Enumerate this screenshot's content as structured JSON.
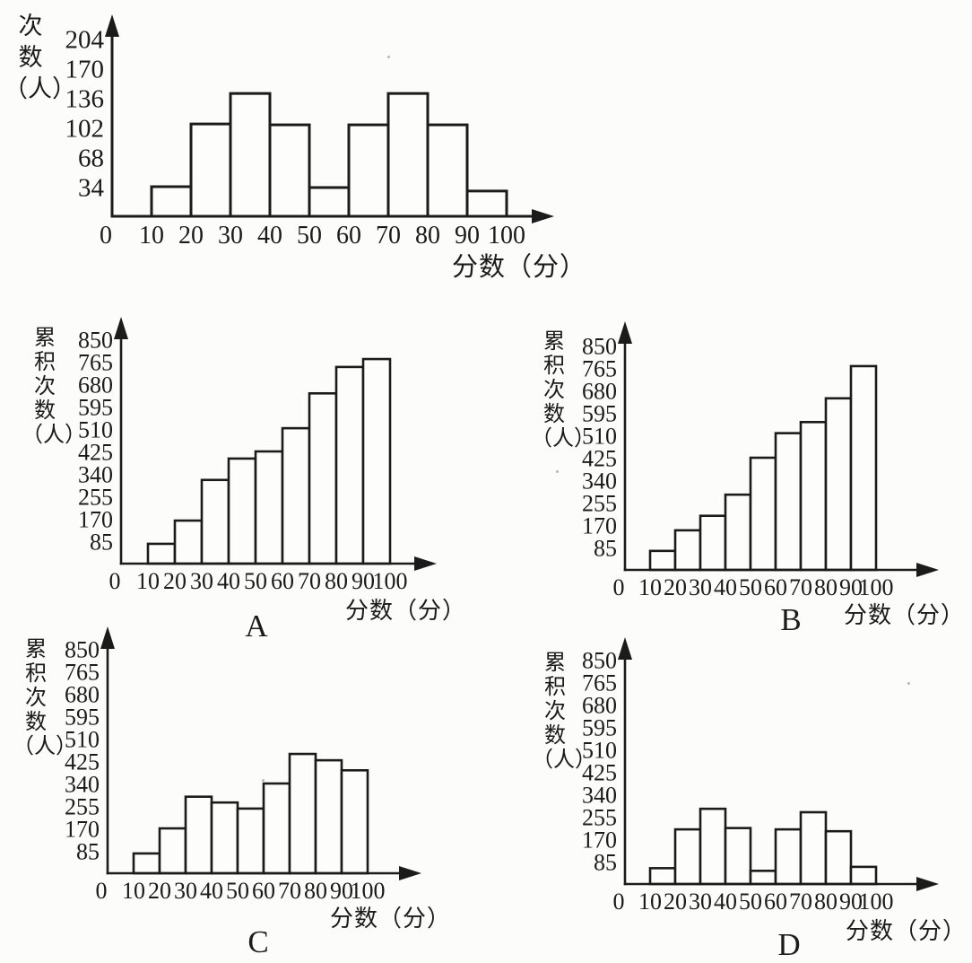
{
  "page": {
    "background": "#fcfcfa",
    "ink": "#1b1b1b"
  },
  "chart_data": [
    {
      "id": "frequency-histogram",
      "type": "bar",
      "title": "",
      "ylabel": "次数（人）",
      "ylabel_lines": [
        "次",
        "数",
        "（人）"
      ],
      "xlabel": "分数（分）",
      "caption": "",
      "categories": [
        "10-20",
        "20-30",
        "30-40",
        "40-50",
        "50-60",
        "60-70",
        "70-80",
        "80-90",
        "90-100"
      ],
      "values": [
        34,
        106,
        141,
        105,
        33,
        105,
        141,
        105,
        29
      ],
      "yticks": [
        34,
        68,
        102,
        136,
        170,
        204
      ],
      "xticks": [
        0,
        10,
        20,
        30,
        40,
        50,
        60,
        70,
        80,
        90,
        100
      ],
      "ylim": [
        0,
        224
      ],
      "xlim": [
        0,
        110
      ],
      "grid": false,
      "legend": "none"
    },
    {
      "id": "cumulative-histogram-A",
      "type": "bar",
      "title": "",
      "ylabel": "累积次数（人）",
      "ylabel_lines": [
        "累",
        "积",
        "次",
        "数",
        "（人）"
      ],
      "xlabel": "分数（分）",
      "caption": "A",
      "categories": [
        "10-20",
        "20-30",
        "30-40",
        "40-50",
        "50-60",
        "60-70",
        "70-80",
        "80-90",
        "90-100"
      ],
      "values": [
        75,
        163,
        317,
        398,
        425,
        513,
        645,
        745,
        775
      ],
      "yticks": [
        85,
        170,
        255,
        340,
        425,
        510,
        595,
        680,
        765,
        850
      ],
      "xticks": [
        0,
        10,
        20,
        30,
        40,
        50,
        60,
        70,
        80,
        90,
        100
      ],
      "ylim": [
        0,
        875
      ],
      "xlim": [
        0,
        110
      ],
      "grid": false,
      "legend": "none"
    },
    {
      "id": "cumulative-histogram-B",
      "type": "bar",
      "title": "",
      "ylabel": "累积次数（人）",
      "ylabel_lines": [
        "累",
        "积",
        "次",
        "数",
        "（人）"
      ],
      "xlabel": "分数（分）",
      "caption": "B",
      "categories": [
        "10-20",
        "20-30",
        "30-40",
        "40-50",
        "50-60",
        "60-70",
        "70-80",
        "80-90",
        "90-100"
      ],
      "values": [
        72,
        150,
        205,
        285,
        425,
        518,
        560,
        650,
        772
      ],
      "yticks": [
        85,
        170,
        255,
        340,
        425,
        510,
        595,
        680,
        765,
        850
      ],
      "xticks": [
        0,
        10,
        20,
        30,
        40,
        50,
        60,
        70,
        80,
        90,
        100
      ],
      "ylim": [
        0,
        875
      ],
      "xlim": [
        0,
        110
      ],
      "grid": false,
      "legend": "none"
    },
    {
      "id": "cumulative-histogram-C",
      "type": "bar",
      "title": "",
      "ylabel": "累积次数（人）",
      "ylabel_lines": [
        "累",
        "积",
        "次",
        "数",
        "（人）"
      ],
      "xlabel": "分数（分）",
      "caption": "C",
      "categories": [
        "10-20",
        "20-30",
        "30-40",
        "40-50",
        "50-60",
        "60-70",
        "70-80",
        "80-90",
        "90-100"
      ],
      "values": [
        75,
        170,
        290,
        268,
        245,
        340,
        452,
        428,
        390
      ],
      "yticks": [
        85,
        170,
        255,
        340,
        425,
        510,
        595,
        680,
        765,
        850
      ],
      "xticks": [
        0,
        10,
        20,
        30,
        40,
        50,
        60,
        70,
        80,
        90,
        100
      ],
      "ylim": [
        0,
        875
      ],
      "xlim": [
        0,
        110
      ],
      "grid": false,
      "legend": "none"
    },
    {
      "id": "cumulative-histogram-D",
      "type": "bar",
      "title": "",
      "ylabel": "累积次数（人）",
      "ylabel_lines": [
        "累",
        "积",
        "次",
        "数",
        "（人）"
      ],
      "xlabel": "分数（分）",
      "caption": "D",
      "categories": [
        "10-20",
        "20-30",
        "30-40",
        "40-50",
        "50-60",
        "60-70",
        "70-80",
        "80-90",
        "90-100"
      ],
      "values": [
        60,
        207,
        285,
        212,
        50,
        207,
        272,
        200,
        65
      ],
      "yticks": [
        85,
        170,
        255,
        340,
        425,
        510,
        595,
        680,
        765,
        850
      ],
      "xticks": [
        0,
        10,
        20,
        30,
        40,
        50,
        60,
        70,
        80,
        90,
        100
      ],
      "ylim": [
        0,
        875
      ],
      "xlim": [
        0,
        110
      ],
      "grid": false,
      "legend": "none"
    }
  ]
}
